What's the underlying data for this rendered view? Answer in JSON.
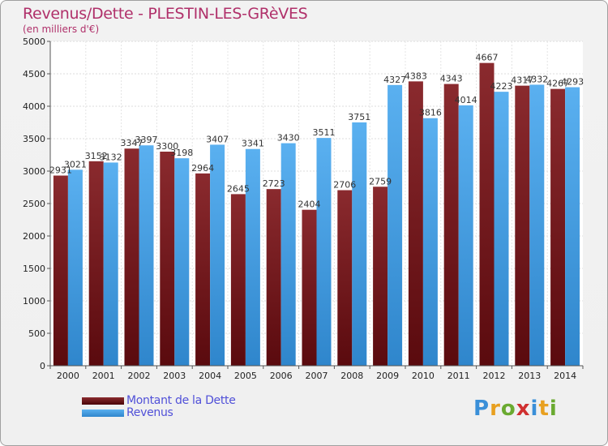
{
  "title": "Revenus/Dette - PLESTIN-LES-GRèVES",
  "subtitle": "(en milliers d'€)",
  "colors": {
    "dette": "#7a1f22",
    "revenus": "#4aa3e6",
    "title": "#b0306a",
    "legend_text": "#5050d8"
  },
  "legend": {
    "dette_label": "Montant de la Dette",
    "revenus_label": "Revenus"
  },
  "logo": {
    "letters": [
      "P",
      "r",
      "o",
      "x",
      "i",
      "t",
      "i"
    ],
    "colors": [
      "#3a8fd8",
      "#e8a020",
      "#6aaa30",
      "#d03030",
      "#3a8fd8",
      "#e8a020",
      "#6aaa30"
    ]
  },
  "chart_data": {
    "type": "bar",
    "title": "Revenus/Dette - PLESTIN-LES-GRèVES",
    "ylabel": "(en milliers d'€)",
    "xlabel": "",
    "ylim": [
      0,
      5000
    ],
    "yticks": [
      0,
      500,
      1000,
      1500,
      2000,
      2500,
      3000,
      3500,
      4000,
      4500,
      5000
    ],
    "grid": true,
    "categories": [
      "2000",
      "2001",
      "2002",
      "2003",
      "2004",
      "2005",
      "2006",
      "2007",
      "2008",
      "2009",
      "2010",
      "2011",
      "2012",
      "2013",
      "2014"
    ],
    "series": [
      {
        "name": "Montant de la Dette",
        "values": [
          2931,
          3152,
          3347,
          3300,
          2964,
          2645,
          2723,
          2404,
          2706,
          2759,
          4383,
          4343,
          4667,
          4317,
          4267
        ]
      },
      {
        "name": "Revenus",
        "values": [
          3021,
          3132,
          3397,
          3198,
          3407,
          3341,
          3430,
          3511,
          3751,
          4327,
          3816,
          4014,
          4223,
          4332,
          4293
        ]
      }
    ]
  }
}
